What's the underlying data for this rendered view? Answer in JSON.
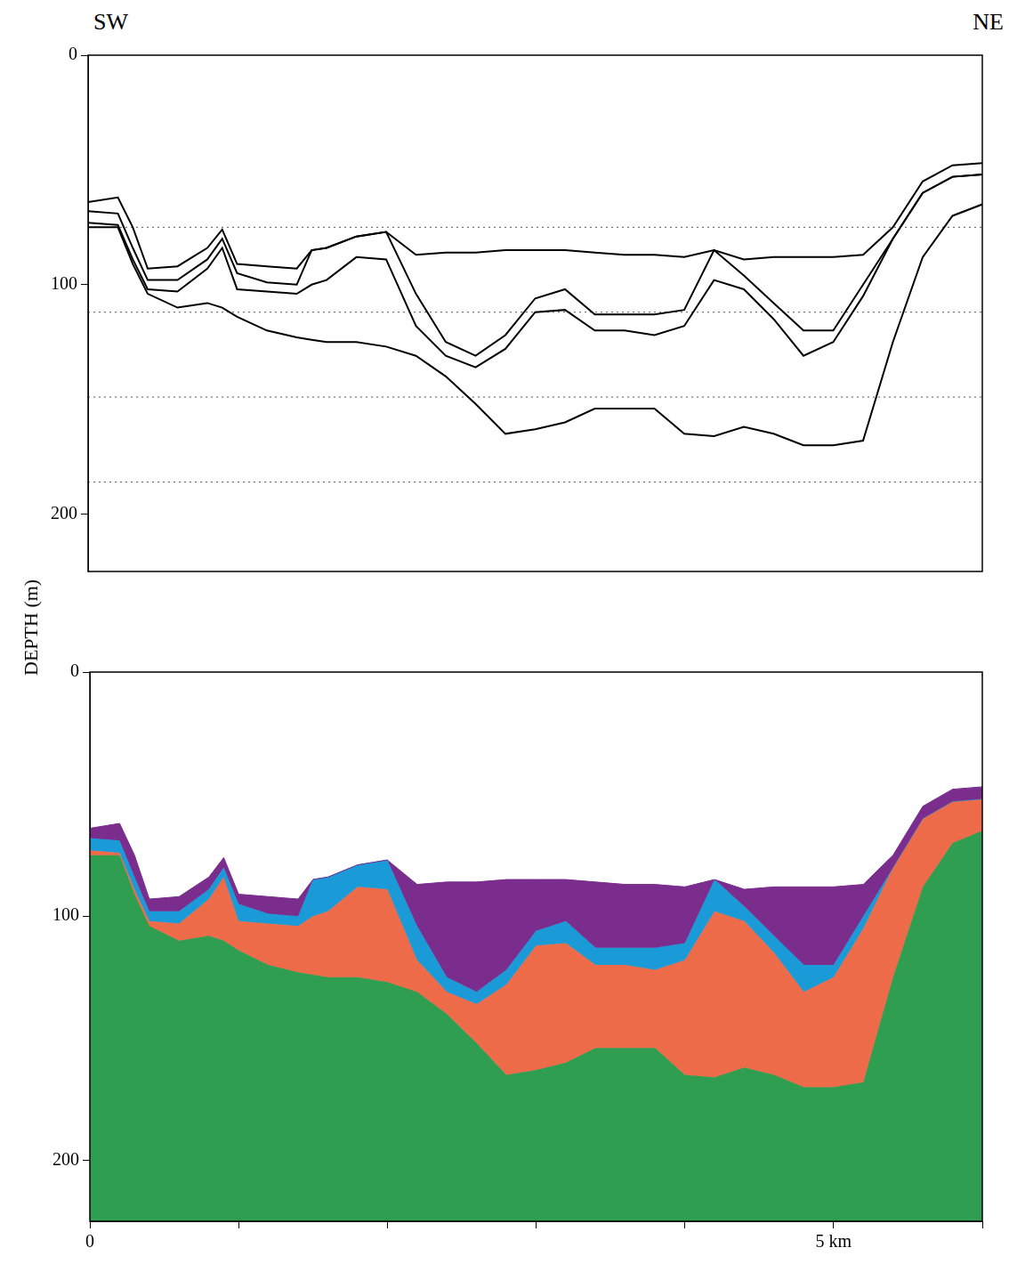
{
  "chart_data": [
    {
      "type": "line",
      "annotations": [
        "SW",
        "NE"
      ],
      "x": [
        0,
        0.2,
        0.3,
        0.4,
        0.6,
        0.8,
        0.9,
        1,
        1.2,
        1.4,
        1.5,
        1.6,
        1.8,
        2,
        2.2,
        2.4,
        2.6,
        2.8,
        3,
        3.2,
        3.4,
        3.6,
        3.8,
        4,
        4.2,
        4.4,
        4.6,
        4.8,
        5,
        5.2,
        5.4,
        5.6,
        5.8,
        6
      ],
      "series": [
        {
          "color": "#000000",
          "line_style": "solid",
          "values": [
            64,
            62,
            75,
            93,
            92,
            84,
            76,
            91,
            92,
            93,
            85,
            84,
            79,
            77,
            87,
            86,
            86,
            85,
            85,
            85,
            86,
            87,
            87,
            88,
            85,
            89,
            88,
            88,
            88,
            87,
            75,
            55,
            48,
            47
          ]
        },
        {
          "color": "#000000",
          "line_style": "solid",
          "values": [
            68,
            69,
            84,
            98,
            98,
            89,
            80,
            95,
            99,
            100,
            85,
            84,
            79,
            77,
            104,
            125,
            131,
            122,
            106,
            102,
            113,
            113,
            113,
            111,
            85,
            96,
            108,
            120,
            120,
            100,
            80,
            60,
            53,
            52
          ]
        },
        {
          "color": "#000000",
          "line_style": "solid",
          "values": [
            73,
            74,
            89,
            102,
            103,
            93,
            84,
            102,
            103,
            104,
            100,
            98,
            88,
            89,
            118,
            131,
            136,
            128,
            112,
            111,
            120,
            120,
            122,
            118,
            98,
            102,
            115,
            131,
            125,
            105,
            80,
            60,
            53,
            52
          ]
        },
        {
          "color": "#000000",
          "line_style": "solid",
          "values": [
            75,
            75,
            91,
            104,
            110,
            108,
            110,
            114,
            120,
            123,
            124,
            125,
            125,
            127,
            131,
            140,
            152,
            165,
            163,
            160,
            154,
            154,
            154,
            165,
            166,
            162,
            165,
            170,
            170,
            168,
            125,
            88,
            70,
            65
          ]
        },
        {
          "color": "#555555",
          "line_style": "dotted",
          "x": [
            0,
            6
          ],
          "values": [
            75,
            75
          ]
        },
        {
          "color": "#555555",
          "line_style": "dotted",
          "x": [
            0,
            6
          ],
          "values": [
            112,
            112
          ]
        },
        {
          "color": "#555555",
          "line_style": "dotted",
          "x": [
            0,
            6
          ],
          "values": [
            149,
            149
          ]
        },
        {
          "color": "#555555",
          "line_style": "dotted",
          "x": [
            0,
            6
          ],
          "values": [
            186,
            186
          ]
        }
      ],
      "xlim": [
        0,
        6
      ],
      "ylim": [
        0,
        225
      ],
      "yticks": [
        0,
        100,
        200
      ],
      "tick_labels": "y"
    },
    {
      "type": "area",
      "ylabel": "DEPTH (m)",
      "x": [
        0,
        0.2,
        0.3,
        0.4,
        0.6,
        0.8,
        0.9,
        1,
        1.2,
        1.4,
        1.5,
        1.6,
        1.8,
        2,
        2.2,
        2.4,
        2.6,
        2.8,
        3,
        3.2,
        3.4,
        3.6,
        3.8,
        4,
        4.2,
        4.4,
        4.6,
        4.8,
        5,
        5.2,
        5.4,
        5.6,
        5.8,
        6
      ],
      "series": [
        {
          "color": "#7b2d8e",
          "values": [
            64,
            62,
            75,
            93,
            92,
            84,
            76,
            91,
            92,
            93,
            85,
            84,
            79,
            77,
            87,
            86,
            86,
            85,
            85,
            85,
            86,
            87,
            87,
            88,
            85,
            89,
            88,
            88,
            88,
            87,
            75,
            55,
            48,
            47
          ]
        },
        {
          "color": "#1a9bd7",
          "values": [
            68,
            69,
            84,
            98,
            98,
            89,
            80,
            95,
            99,
            100,
            85,
            84,
            79,
            77,
            104,
            125,
            131,
            122,
            106,
            102,
            113,
            113,
            113,
            111,
            85,
            96,
            108,
            120,
            120,
            100,
            80,
            60,
            53,
            52
          ]
        },
        {
          "color": "#ee6b4a",
          "values": [
            73,
            74,
            89,
            102,
            103,
            93,
            84,
            102,
            103,
            104,
            100,
            98,
            88,
            89,
            118,
            131,
            136,
            128,
            112,
            111,
            120,
            120,
            122,
            118,
            98,
            102,
            115,
            131,
            125,
            105,
            80,
            60,
            53,
            52
          ]
        },
        {
          "color": "#2f9e50",
          "values": [
            75,
            75,
            91,
            104,
            110,
            108,
            110,
            114,
            120,
            123,
            124,
            125,
            125,
            127,
            131,
            140,
            152,
            165,
            163,
            160,
            154,
            154,
            154,
            165,
            166,
            162,
            165,
            170,
            170,
            168,
            125,
            88,
            70,
            65
          ]
        }
      ],
      "xlim": [
        0,
        6
      ],
      "xticks": [
        0,
        {
          "value": 1,
          "label": null
        },
        {
          "value": 2,
          "label": null
        },
        {
          "value": 3,
          "label": null
        },
        {
          "value": 4,
          "label": null
        },
        {
          "value": 5,
          "label": "5 km"
        },
        {
          "value": 6,
          "label": null
        }
      ],
      "ylim": [
        0,
        225
      ],
      "yticks": [
        0,
        100,
        200
      ]
    }
  ]
}
